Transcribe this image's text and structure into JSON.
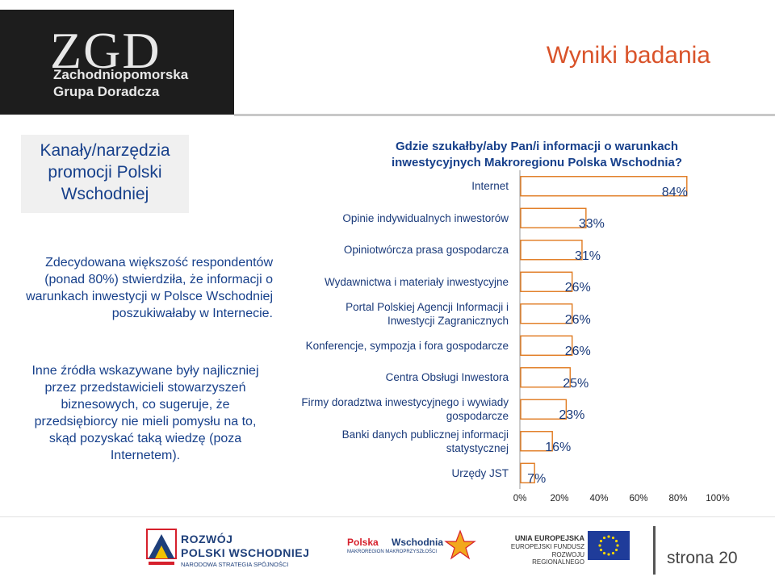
{
  "header": {
    "logo_mark": "ZGD",
    "logo_line1": "Zachodniopomorska",
    "logo_line2": "Grupa Doradcza",
    "title": "Wyniki badania"
  },
  "left": {
    "heading": "Kanały/narzędzia promocji Polski Wschodniej",
    "para1": "Zdecydowana większość respondentów (ponad 80%) stwierdziła, że informacji o warunkach inwestycji w Polsce Wschodniej poszukiwałaby w Internecie.",
    "para2": "Inne źródła wskazywane były najliczniej przez przedstawicieli stowarzyszeń biznesowych, co sugeruje, że przedsiębiorcy nie mieli pomysłu na to, skąd pozyskać taką wiedzę (poza Internetem)."
  },
  "chart_data": {
    "type": "bar",
    "orientation": "horizontal",
    "title": "Gdzie szukałby/aby Pan/i informacji o warunkach inwestycyjnych Makroregionu Polska Wschodnia?",
    "categories": [
      "Internet",
      "Opinie indywidualnych inwestorów",
      "Opiniotwórcza prasa gospodarcza",
      "Wydawnictwa i materiały inwestycyjne",
      "Portal Polskiej Agencji Informacji i Inwestycji Zagranicznych",
      "Konferencje, sympozja i fora gospodarcze",
      "Centra Obsługi Inwestora",
      "Firmy doradztwa inwestycyjnego i wywiady gospodarcze",
      "Banki danych publicznej informacji statystycznej",
      "Urzędy JST"
    ],
    "values": [
      84,
      33,
      31,
      26,
      26,
      26,
      25,
      23,
      16,
      7
    ],
    "value_labels": [
      "84%",
      "33%",
      "31%",
      "26%",
      "26%",
      "26%",
      "25%",
      "23%",
      "16%",
      "7%"
    ],
    "xlim": [
      0,
      100
    ],
    "x_ticks": [
      "0%",
      "20%",
      "40%",
      "60%",
      "80%",
      "100%"
    ],
    "bar_color": "#ffffff",
    "bar_stroke": "#e07a1f",
    "grid": false,
    "legend": "none"
  },
  "footer": {
    "logo1_line1": "ROZWÓJ",
    "logo1_line2": "POLSKI WSCHODNIEJ",
    "logo1_line3": "NARODOWA STRATEGIA SPÓJNOŚCI",
    "logo2_word1": "Polska",
    "logo2_word2": "Wschodnia",
    "logo2_sub": "MAKROREGION MAKROPRZYSZŁOŚCI",
    "logo3_line1": "UNIA EUROPEJSKA",
    "logo3_line2": "EUROPEJSKI FUNDUSZ",
    "logo3_line3": "ROZWOJU REGIONALNEGO",
    "page_label": "strona 20"
  }
}
